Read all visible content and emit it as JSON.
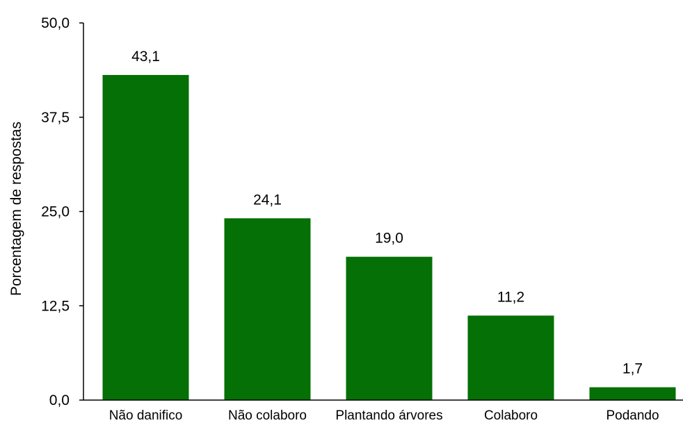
{
  "chart_data": {
    "type": "bar",
    "categories": [
      "Não danifico",
      "Não colaboro",
      "Plantando árvores",
      "Colaboro",
      "Podando"
    ],
    "values": [
      43.1,
      24.1,
      19.0,
      11.2,
      1.7
    ],
    "value_labels": [
      "43,1",
      "24,1",
      "19,0",
      "11,2",
      "1,7"
    ],
    "title": "",
    "xlabel": "",
    "ylabel": "Porcentagem de respostas",
    "ylim": [
      0,
      50
    ],
    "yticks": [
      0,
      12.5,
      25,
      37.5,
      50
    ],
    "ytick_labels": [
      "0,0",
      "12,5",
      "25,0",
      "37,5",
      "50,0"
    ],
    "grid": false,
    "legend": "none",
    "bar_color": "#057005"
  }
}
